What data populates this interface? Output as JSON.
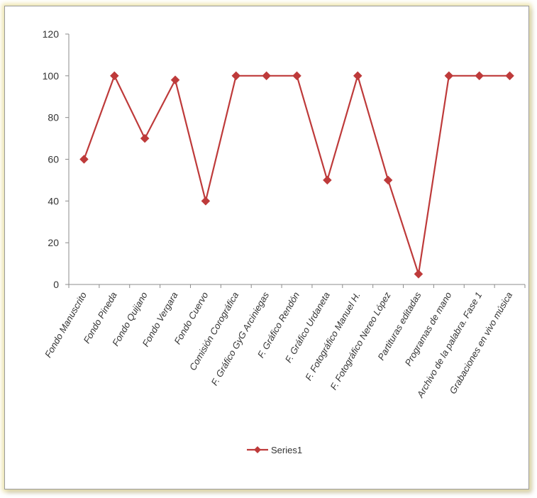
{
  "chart_data": {
    "type": "line",
    "categories": [
      "Fondo Manuscrito",
      "Fondo Pineda",
      "Fondo Quijano",
      "Fondo Vergara",
      "Fondo Cuervo",
      "Comisión Corográfica",
      "F. Gráfico GyG Arciniegas",
      "F. Gráfico Rendón",
      "F. Gráfico Urdaneta",
      "F. Fotográfico Manuel H.",
      "F. Fotográfico Nereo López",
      "Partituras editadas",
      "Programas de mano",
      "Archivo de la palabra. Fase 1",
      "Grabaciones en vivo música"
    ],
    "series": [
      {
        "name": "Series1",
        "values": [
          60,
          100,
          70,
          98,
          40,
          100,
          100,
          100,
          50,
          100,
          50,
          5,
          100,
          100,
          100
        ]
      }
    ],
    "yticks": [
      "0",
      "20",
      "40",
      "60",
      "80",
      "100",
      "120"
    ],
    "ylim": [
      0,
      120
    ],
    "grid": false,
    "legend_position": "bottom",
    "colors": {
      "series": "#be3a3a",
      "axis": "#8c8c8c"
    }
  }
}
